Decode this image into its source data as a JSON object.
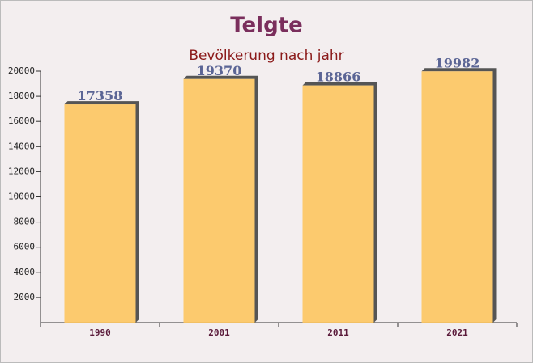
{
  "chart_data": {
    "type": "bar",
    "title": "Telgte",
    "subtitle": "Bevölkerung nach jahr",
    "categories": [
      "1990",
      "2001",
      "2011",
      "2021"
    ],
    "values": [
      17358,
      19370,
      18866,
      19982
    ],
    "color": "#fdc55f",
    "ylim": [
      0,
      20000
    ],
    "yticks": [
      2000,
      4000,
      6000,
      8000,
      10000,
      12000,
      14000,
      16000,
      18000,
      20000
    ]
  }
}
